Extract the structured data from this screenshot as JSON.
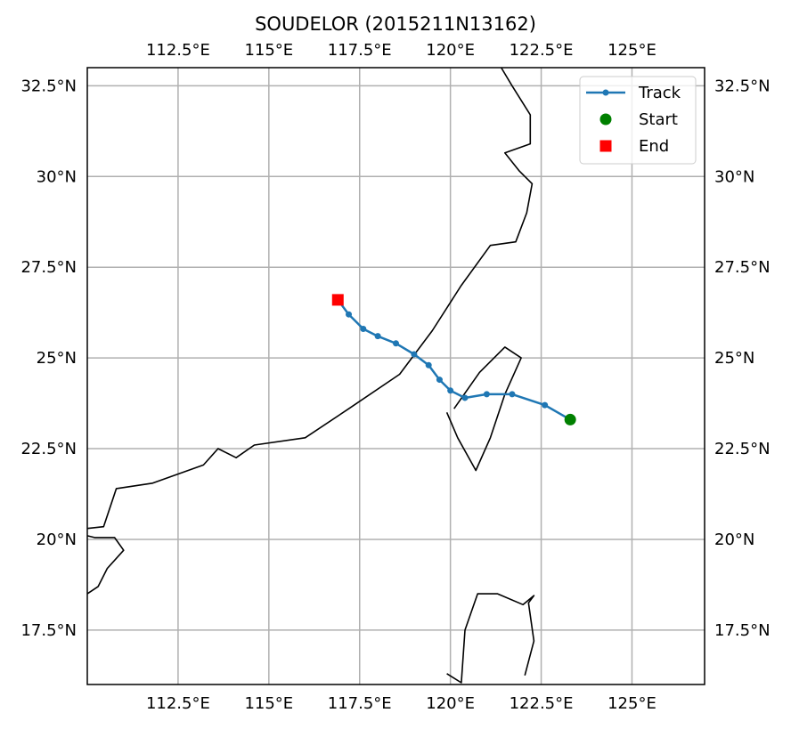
{
  "chart_data": {
    "type": "map-track",
    "title": "SOUDELOR (2015211N13162)",
    "projection": "PlateCarree",
    "xlim": [
      110,
      127
    ],
    "ylim": [
      16,
      33
    ],
    "x_ticks": [
      112.5,
      115,
      117.5,
      120,
      122.5,
      125
    ],
    "x_tick_labels": [
      "112.5°E",
      "115°E",
      "117.5°E",
      "120°E",
      "122.5°E",
      "125°E"
    ],
    "y_ticks": [
      17.5,
      20,
      22.5,
      25,
      27.5,
      30,
      32.5
    ],
    "y_tick_labels": [
      "17.5°N",
      "20°N",
      "22.5°N",
      "25°N",
      "27.5°N",
      "30°N",
      "32.5°N"
    ],
    "grid": true,
    "legend_position": "top-right",
    "colors": {
      "track": "#1f77b4",
      "start": "#008000",
      "end": "#ff0000",
      "coast": "#000000",
      "grid": "#b0b0b0"
    },
    "series": [
      {
        "name": "Track",
        "lon": [
          123.3,
          122.6,
          121.7,
          121.0,
          120.4,
          120.0,
          119.7,
          119.4,
          119.0,
          118.5,
          118.0,
          117.6,
          117.2,
          116.9
        ],
        "lat": [
          23.3,
          23.7,
          24.0,
          24.0,
          23.9,
          24.1,
          24.4,
          24.8,
          25.1,
          25.4,
          25.6,
          25.8,
          26.2,
          26.6
        ]
      },
      {
        "name": "Start",
        "lon": 123.3,
        "lat": 23.3
      },
      {
        "name": "End",
        "lon": 116.9,
        "lat": 26.6
      }
    ],
    "coastlines": [
      [
        [
          110,
          20.3
        ],
        [
          110.45,
          20.35
        ],
        [
          110.8,
          21.4
        ],
        [
          111.8,
          21.55
        ],
        [
          113.2,
          22.05
        ],
        [
          113.6,
          22.5
        ],
        [
          114.1,
          22.25
        ],
        [
          114.6,
          22.6
        ],
        [
          116.0,
          22.8
        ],
        [
          117.2,
          23.6
        ],
        [
          118.6,
          24.55
        ],
        [
          119.5,
          25.75
        ],
        [
          120.3,
          27.0
        ],
        [
          121.1,
          28.1
        ],
        [
          121.8,
          28.2
        ],
        [
          122.1,
          29.0
        ],
        [
          122.25,
          29.8
        ],
        [
          121.9,
          30.15
        ],
        [
          121.5,
          30.65
        ],
        [
          122.2,
          30.9
        ],
        [
          122.2,
          31.7
        ],
        [
          121.7,
          32.5
        ],
        [
          121.4,
          33.0
        ]
      ],
      [
        [
          119.9,
          23.5
        ],
        [
          120.2,
          22.8
        ],
        [
          120.7,
          21.9
        ],
        [
          121.1,
          22.8
        ],
        [
          121.5,
          24.0
        ],
        [
          121.95,
          25.0
        ],
        [
          121.5,
          25.3
        ],
        [
          120.8,
          24.6
        ],
        [
          120.1,
          23.6
        ]
      ],
      [
        [
          110,
          20.1
        ],
        [
          110.2,
          20.05
        ],
        [
          110.75,
          20.05
        ],
        [
          111.0,
          19.7
        ],
        [
          110.55,
          19.2
        ],
        [
          110.3,
          18.7
        ],
        [
          110.0,
          18.5
        ]
      ],
      [
        [
          119.9,
          16.3
        ],
        [
          120.3,
          16.05
        ],
        [
          120.4,
          17.5
        ],
        [
          120.75,
          18.5
        ],
        [
          121.3,
          18.5
        ],
        [
          122.0,
          18.2
        ],
        [
          122.3,
          18.45
        ],
        [
          122.15,
          18.25
        ],
        [
          122.3,
          17.2
        ],
        [
          122.05,
          16.25
        ]
      ]
    ]
  }
}
